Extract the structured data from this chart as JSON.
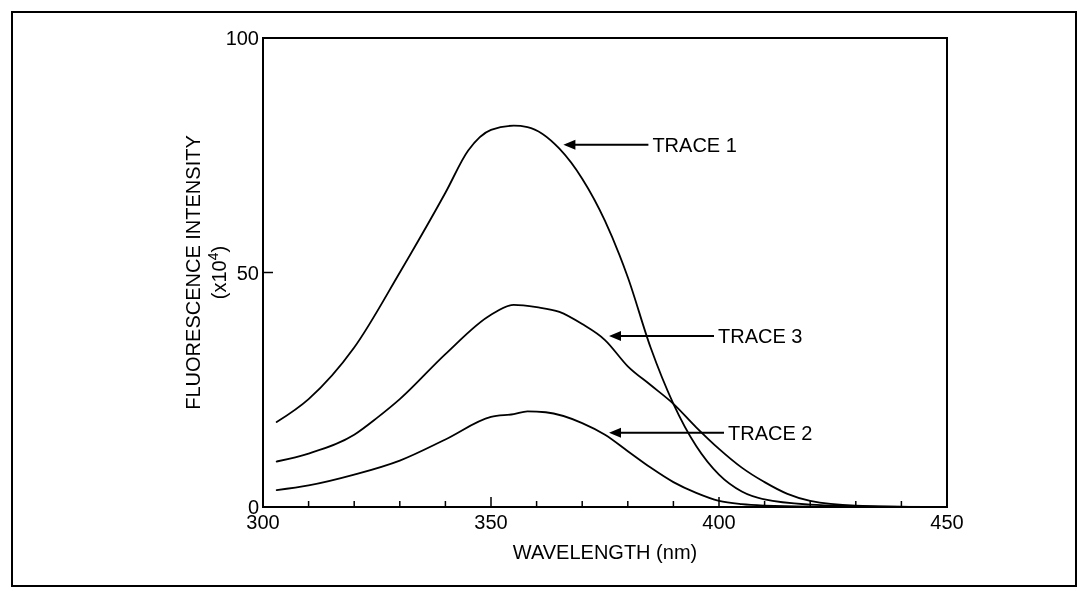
{
  "chart_data": {
    "type": "line",
    "xlabel": "WAVELENGTH (nm)",
    "ylabel": "FLUORESCENCE INTENSITY (x10$^{4}$)",
    "xlim": [
      300,
      450
    ],
    "ylim": [
      0,
      100
    ],
    "xticks": [
      300,
      {
        "value": 310,
        "label": null
      },
      {
        "value": 320,
        "label": null
      },
      {
        "value": 330,
        "label": null
      },
      {
        "value": 340,
        "label": null
      },
      350,
      {
        "value": 360,
        "label": null
      },
      {
        "value": 370,
        "label": null
      },
      {
        "value": 380,
        "label": null
      },
      {
        "value": 390,
        "label": null
      },
      400,
      {
        "value": 410,
        "label": null
      },
      {
        "value": 420,
        "label": null
      },
      {
        "value": 430,
        "label": null
      },
      {
        "value": 440,
        "label": null
      },
      450
    ],
    "yticks": [
      0,
      50,
      100
    ],
    "grid": false,
    "marker": "none",
    "line_style": "solid",
    "series": [
      {
        "color": "#000000",
        "x": [
          303,
          310,
          320,
          330,
          340,
          345,
          350,
          355,
          358,
          365,
          370,
          375,
          380,
          385,
          390,
          395,
          400,
          405,
          410,
          420,
          430,
          447
        ],
        "values": [
          18.1,
          23,
          34,
          50,
          67,
          76,
          80.4,
          81.3,
          81,
          76.4,
          70,
          61,
          49,
          34,
          22,
          13,
          6.9,
          3.3,
          1.6,
          0.5,
          0.2,
          0
        ]
      },
      {
        "color": "#000000",
        "x": [
          303,
          310,
          320,
          330,
          340,
          350,
          355,
          358,
          362,
          370,
          375,
          380,
          385,
          390,
          395,
          400,
          405,
          410,
          420,
          447
        ],
        "values": [
          3.6,
          4.6,
          6.9,
          9.9,
          14.4,
          19.2,
          19.8,
          20.4,
          20.2,
          17.9,
          15.4,
          11.9,
          8.4,
          5.3,
          3,
          1.3,
          0.6,
          0.3,
          0.1,
          0
        ]
      },
      {
        "color": "#000000",
        "x": [
          303,
          310,
          320,
          325,
          330,
          340,
          350,
          355,
          360,
          365,
          370,
          375,
          380,
          385,
          390,
          395,
          400,
          405,
          410,
          415,
          420,
          430,
          447
        ],
        "values": [
          9.7,
          11.4,
          15.4,
          19,
          23,
          32.6,
          41,
          43.1,
          42.6,
          41.6,
          39,
          35.6,
          30,
          26,
          22,
          17,
          12.4,
          8.4,
          5.3,
          2.8,
          1.3,
          0.3,
          0
        ]
      }
    ],
    "annotations": [
      "TRACE 1",
      "TRACE 3",
      "TRACE 2"
    ]
  }
}
